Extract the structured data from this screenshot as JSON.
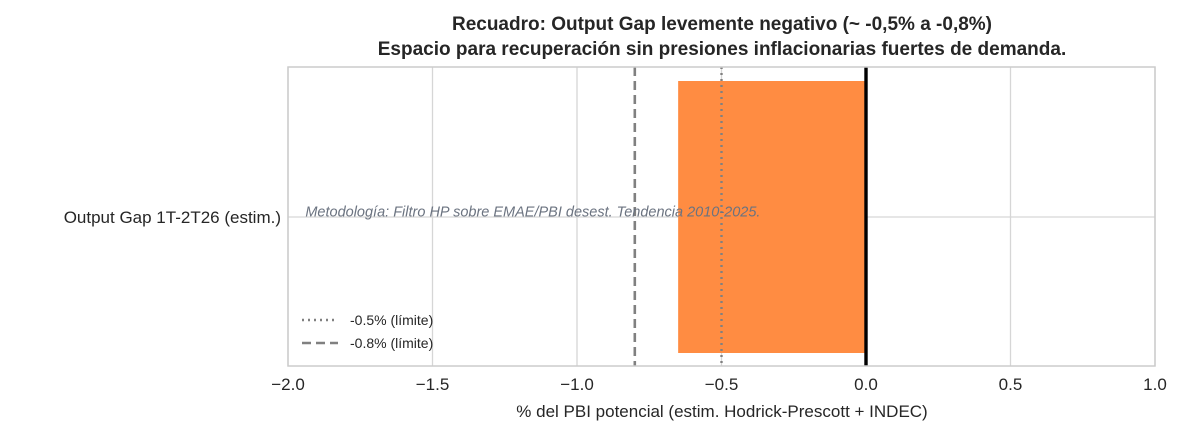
{
  "chart_data": {
    "type": "bar",
    "orientation": "horizontal",
    "title": "Recuadro: Output Gap levemente negativo (~ -0,5% a -0,8%)",
    "subtitle": "Espacio para recuperación sin presiones inflacionarias fuertes de demanda.",
    "xlabel": "% del PBI potencial (estim. Hodrick-Prescott + INDEC)",
    "ylabel": "",
    "categories": [
      "Output Gap 1T-2T26 (estim.)"
    ],
    "values": [
      -0.65
    ],
    "bar_color": "#ff8c42",
    "xlim": [
      -2.0,
      1.0
    ],
    "xticks": [
      -2.0,
      -1.5,
      -1.0,
      -0.5,
      0.0,
      0.5,
      1.0
    ],
    "xtick_labels": [
      "−2.0",
      "−1.5",
      "−1.0",
      "−0.5",
      "0.0",
      "0.5",
      "1.0"
    ],
    "grid": true,
    "zero_line": {
      "value": 0.0,
      "color": "#000000"
    },
    "reference_lines": [
      {
        "value": -0.5,
        "style": "dotted",
        "color": "#808080",
        "label": "-0.5% (límite)"
      },
      {
        "value": -0.8,
        "style": "dashed",
        "color": "#808080",
        "label": "-0.8% (límite)"
      }
    ],
    "annotation": {
      "text": "Metodología: Filtro HP sobre EMAE/PBI desest. Tendencia 2010-2025.",
      "x": -1.94,
      "y": 0.0
    },
    "legend_placement": "lower-left"
  }
}
